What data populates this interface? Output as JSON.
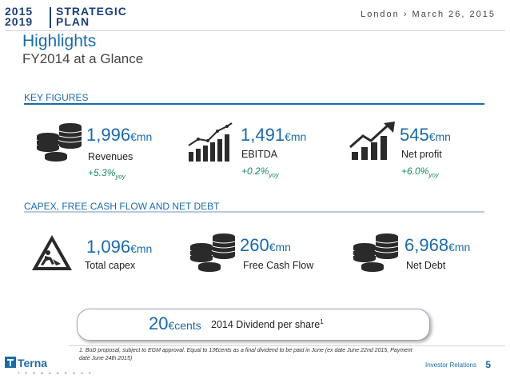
{
  "header": {
    "logo_years_top": "2015",
    "logo_years_bottom": "2019",
    "logo_word_top": "STRATEGIC",
    "logo_word_bottom": "PLAN",
    "date": "London › March 26, 2015"
  },
  "page": {
    "title": "Highlights",
    "subtitle": "FY2014 at a Glance"
  },
  "key_figures": {
    "heading": "KEY FIGURES",
    "items": [
      {
        "value": "1,996",
        "unit": "€mn",
        "label": "Revenues",
        "growth": "+5.3%",
        "growth_suffix": "yoy",
        "icon": "coins-stack-icon"
      },
      {
        "value": "1,491",
        "unit": "€mn",
        "label": "EBITDA",
        "growth": "+0.2%",
        "growth_suffix": "yoy",
        "icon": "bar-growth-line-icon"
      },
      {
        "value": "545",
        "unit": "€mn",
        "label": "Net profit",
        "growth": "+6.0%",
        "growth_suffix": "yoy",
        "icon": "bar-arrow-up-icon"
      }
    ]
  },
  "capex": {
    "heading": "CAPEX, FREE CASH FLOW AND NET DEBT",
    "items": [
      {
        "value": "1,096",
        "unit": "€mn",
        "label": "Total capex",
        "icon": "construction-sign-icon"
      },
      {
        "value": "260",
        "unit": "€mn",
        "label": "Free Cash Flow",
        "icon": "coins-stack-icon"
      },
      {
        "value": "6,968",
        "unit": "€mn",
        "label": "Net Debt",
        "icon": "coins-stack-icon"
      }
    ]
  },
  "dividend": {
    "value": "20",
    "unit": "€cents",
    "label": "2014 Dividend per share",
    "footnote_ref": "1"
  },
  "footnote": "1.   BoD proposal, subject to EGM approval. Equal to 13€cents as a final dividend to be paid in June (ex date June 22nd 2015, Payment date June 24th 2015)",
  "footer": {
    "company": "Terna",
    "company_sub": "T E R N A   G R O U P",
    "section": "Investor Relations",
    "page_number": "5"
  },
  "colors": {
    "accent": "#1b6aa8",
    "brand_dark": "#1b3f7a",
    "icon_dark": "#2a2a2a"
  }
}
